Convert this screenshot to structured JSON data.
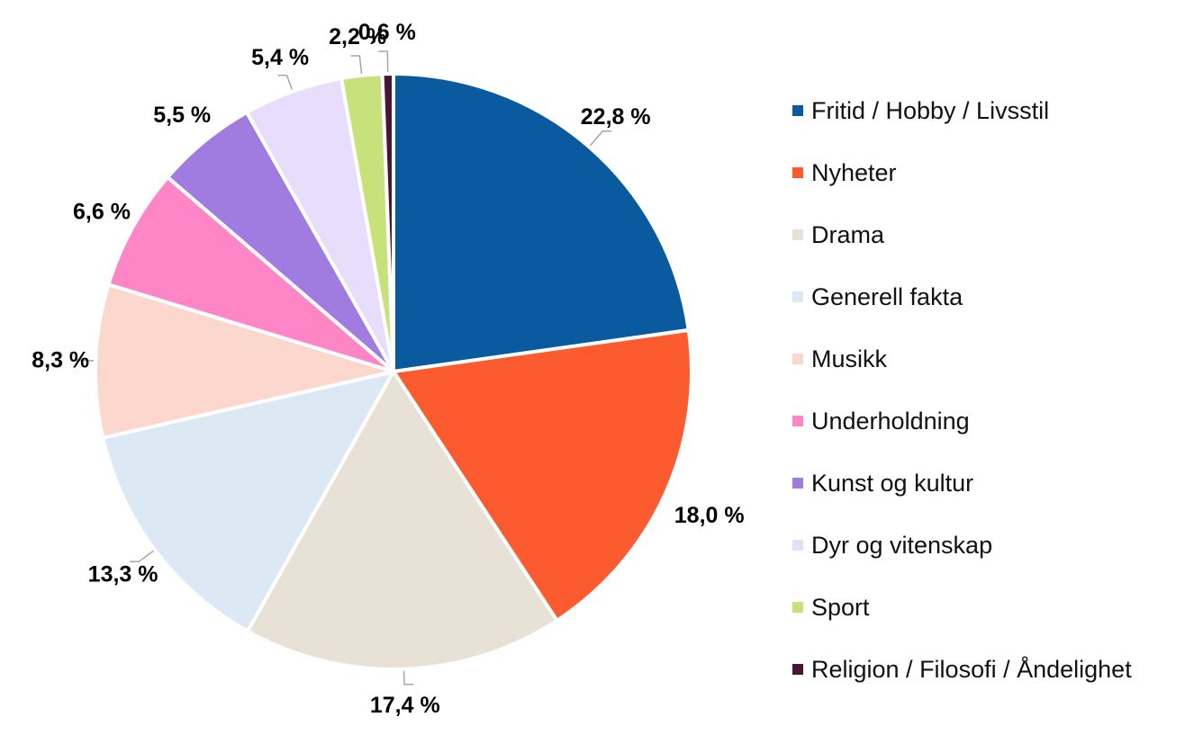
{
  "chart_data": {
    "type": "pie",
    "title": "",
    "start": "top",
    "direction": "clockwise",
    "legend_position": "right",
    "categories": [
      "Fritid / Hobby / Livsstil",
      "Nyheter",
      "Drama",
      "Generell fakta",
      "Musikk",
      "Underholdning",
      "Kunst og kultur",
      "Dyr og vitenskap",
      "Sport",
      "Religion / Filosofi / Åndelighet"
    ],
    "values": [
      22.8,
      18.0,
      17.4,
      13.3,
      8.3,
      6.6,
      5.5,
      5.4,
      2.2,
      0.6
    ],
    "data_labels": [
      "22,8 %",
      "18,0 %",
      "17,4 %",
      "13,3 %",
      "8,3 %",
      "6,6 %",
      "5,5 %",
      "5,4 %",
      "2,2 %",
      "0,6 %"
    ],
    "colors": [
      "#0a5aa0",
      "#fb5b2f",
      "#e7e1d6",
      "#dce9f5",
      "#fcd7cd",
      "#ff86c6",
      "#a07be0",
      "#e8ddfa",
      "#c7e27a",
      "#4a1535"
    ]
  }
}
